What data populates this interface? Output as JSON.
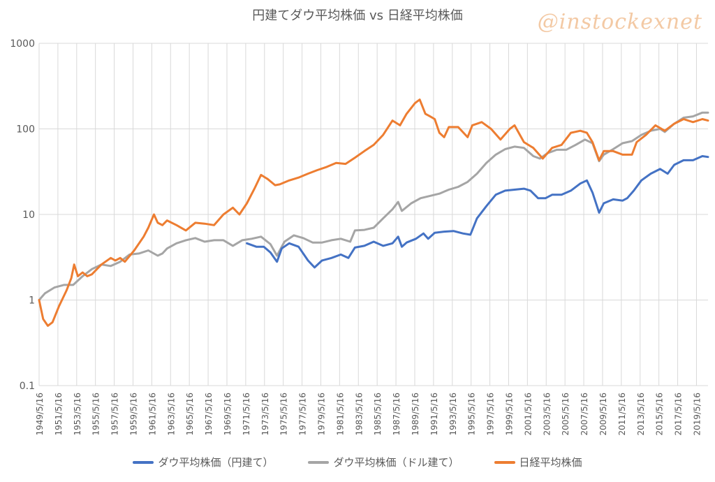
{
  "watermark": "@instockexnet",
  "chart_data": {
    "type": "line",
    "title": "円建てダウ平均株価 vs 日経平均株価",
    "xlabel": "",
    "ylabel": "",
    "y_scale": "log",
    "ylim": [
      0.1,
      1000
    ],
    "y_ticks": [
      "0.1",
      "1",
      "10",
      "100",
      "1000"
    ],
    "xlim": [
      1949.37,
      2020.6
    ],
    "x_tick_labels": [
      "1949/5/16",
      "1951/5/16",
      "1953/5/16",
      "1955/5/16",
      "1957/5/16",
      "1959/5/16",
      "1961/5/16",
      "1963/5/16",
      "1965/5/16",
      "1967/5/16",
      "1969/5/16",
      "1971/5/16",
      "1973/5/16",
      "1975/5/16",
      "1977/5/16",
      "1979/5/16",
      "1981/5/16",
      "1983/5/16",
      "1985/5/16",
      "1987/5/16",
      "1989/5/16",
      "1991/5/16",
      "1993/5/16",
      "1995/5/16",
      "1997/5/16",
      "1999/5/16",
      "2001/5/16",
      "2003/5/16",
      "2005/5/16",
      "2007/5/16",
      "2009/5/16",
      "2011/5/16",
      "2013/5/16",
      "2015/5/16",
      "2017/5/16",
      "2019/5/16"
    ],
    "grid": "vertical and horizontal",
    "legend_position": "bottom",
    "series": [
      {
        "name": "ダウ平均株価（円建て）",
        "color": "#4472C4",
        "points": [
          [
            1971.5,
            4.6
          ],
          [
            1972.5,
            4.2
          ],
          [
            1973.3,
            4.2
          ],
          [
            1974.0,
            3.6
          ],
          [
            1974.7,
            2.8
          ],
          [
            1975.2,
            4.0
          ],
          [
            1976.0,
            4.6
          ],
          [
            1977.0,
            4.2
          ],
          [
            1978.0,
            2.9
          ],
          [
            1978.7,
            2.4
          ],
          [
            1979.5,
            2.9
          ],
          [
            1980.5,
            3.1
          ],
          [
            1981.5,
            3.4
          ],
          [
            1982.3,
            3.1
          ],
          [
            1983.0,
            4.1
          ],
          [
            1984.0,
            4.3
          ],
          [
            1985.0,
            4.8
          ],
          [
            1986.0,
            4.3
          ],
          [
            1987.0,
            4.6
          ],
          [
            1987.6,
            5.5
          ],
          [
            1988.0,
            4.2
          ],
          [
            1988.5,
            4.7
          ],
          [
            1989.5,
            5.2
          ],
          [
            1990.3,
            6.0
          ],
          [
            1990.8,
            5.2
          ],
          [
            1991.5,
            6.1
          ],
          [
            1992.5,
            6.3
          ],
          [
            1993.5,
            6.4
          ],
          [
            1994.5,
            6.0
          ],
          [
            1995.3,
            5.8
          ],
          [
            1996.0,
            9.0
          ],
          [
            1997.0,
            12.5
          ],
          [
            1998.0,
            17.0
          ],
          [
            1999.0,
            19.0
          ],
          [
            2000.0,
            19.5
          ],
          [
            2001.0,
            20.0
          ],
          [
            2001.7,
            19.0
          ],
          [
            2002.5,
            15.5
          ],
          [
            2003.3,
            15.5
          ],
          [
            2004.0,
            17.0
          ],
          [
            2005.0,
            17.0
          ],
          [
            2006.0,
            19.0
          ],
          [
            2007.0,
            23.0
          ],
          [
            2007.7,
            25.0
          ],
          [
            2008.3,
            18.0
          ],
          [
            2009.0,
            10.5
          ],
          [
            2009.5,
            13.5
          ],
          [
            2010.5,
            15.0
          ],
          [
            2011.5,
            14.5
          ],
          [
            2012.0,
            15.5
          ],
          [
            2012.7,
            19.0
          ],
          [
            2013.5,
            25.0
          ],
          [
            2014.5,
            30.0
          ],
          [
            2015.5,
            34.0
          ],
          [
            2016.3,
            30.0
          ],
          [
            2017.0,
            38.0
          ],
          [
            2018.0,
            43.0
          ],
          [
            2019.0,
            43.0
          ],
          [
            2020.0,
            48.0
          ],
          [
            2020.6,
            47.0
          ]
        ]
      },
      {
        "name": "ダウ平均株価（ドル建て）",
        "color": "#A5A5A5",
        "points": [
          [
            1949.37,
            1.0
          ],
          [
            1950.0,
            1.2
          ],
          [
            1951.0,
            1.4
          ],
          [
            1952.0,
            1.5
          ],
          [
            1953.0,
            1.5
          ],
          [
            1954.0,
            1.9
          ],
          [
            1955.0,
            2.3
          ],
          [
            1956.0,
            2.6
          ],
          [
            1957.0,
            2.5
          ],
          [
            1958.0,
            2.8
          ],
          [
            1959.0,
            3.4
          ],
          [
            1960.0,
            3.5
          ],
          [
            1961.0,
            3.8
          ],
          [
            1962.0,
            3.3
          ],
          [
            1962.5,
            3.5
          ],
          [
            1963.0,
            4.0
          ],
          [
            1964.0,
            4.6
          ],
          [
            1965.0,
            5.0
          ],
          [
            1966.0,
            5.3
          ],
          [
            1967.0,
            4.8
          ],
          [
            1968.0,
            5.0
          ],
          [
            1969.0,
            5.0
          ],
          [
            1970.0,
            4.3
          ],
          [
            1971.0,
            5.0
          ],
          [
            1972.0,
            5.2
          ],
          [
            1973.0,
            5.5
          ],
          [
            1974.0,
            4.5
          ],
          [
            1974.7,
            3.3
          ],
          [
            1975.5,
            4.8
          ],
          [
            1976.5,
            5.7
          ],
          [
            1977.5,
            5.3
          ],
          [
            1978.5,
            4.7
          ],
          [
            1979.5,
            4.7
          ],
          [
            1980.5,
            5.0
          ],
          [
            1981.5,
            5.2
          ],
          [
            1982.5,
            4.8
          ],
          [
            1983.0,
            6.5
          ],
          [
            1984.0,
            6.6
          ],
          [
            1985.0,
            7.0
          ],
          [
            1986.0,
            9.0
          ],
          [
            1987.0,
            11.5
          ],
          [
            1987.6,
            14.0
          ],
          [
            1988.0,
            11.0
          ],
          [
            1989.0,
            13.5
          ],
          [
            1990.0,
            15.5
          ],
          [
            1991.0,
            16.5
          ],
          [
            1992.0,
            17.5
          ],
          [
            1993.0,
            19.5
          ],
          [
            1994.0,
            21.0
          ],
          [
            1995.0,
            24.0
          ],
          [
            1996.0,
            30.0
          ],
          [
            1997.0,
            40.0
          ],
          [
            1998.0,
            50.0
          ],
          [
            1999.0,
            58.0
          ],
          [
            2000.0,
            62.0
          ],
          [
            2001.0,
            60.0
          ],
          [
            2002.0,
            48.0
          ],
          [
            2002.7,
            45.0
          ],
          [
            2003.5,
            52.0
          ],
          [
            2004.5,
            57.0
          ],
          [
            2005.5,
            57.0
          ],
          [
            2006.5,
            65.0
          ],
          [
            2007.5,
            75.0
          ],
          [
            2008.3,
            68.0
          ],
          [
            2009.0,
            42.0
          ],
          [
            2009.5,
            50.0
          ],
          [
            2010.5,
            58.0
          ],
          [
            2011.5,
            68.0
          ],
          [
            2012.5,
            72.0
          ],
          [
            2013.5,
            85.0
          ],
          [
            2014.5,
            95.0
          ],
          [
            2015.5,
            100.0
          ],
          [
            2016.0,
            92.0
          ],
          [
            2017.0,
            115.0
          ],
          [
            2018.0,
            135.0
          ],
          [
            2019.0,
            140.0
          ],
          [
            2020.0,
            155.0
          ],
          [
            2020.6,
            155.0
          ]
        ]
      },
      {
        "name": "日経平均株価",
        "color": "#ED7D31",
        "points": [
          [
            1949.37,
            1.0
          ],
          [
            1949.8,
            0.6
          ],
          [
            1950.3,
            0.5
          ],
          [
            1950.8,
            0.55
          ],
          [
            1951.5,
            0.85
          ],
          [
            1952.3,
            1.3
          ],
          [
            1952.8,
            1.8
          ],
          [
            1953.1,
            2.6
          ],
          [
            1953.5,
            1.9
          ],
          [
            1954.0,
            2.1
          ],
          [
            1954.5,
            1.9
          ],
          [
            1955.0,
            2.0
          ],
          [
            1956.0,
            2.6
          ],
          [
            1957.0,
            3.1
          ],
          [
            1957.5,
            2.9
          ],
          [
            1958.0,
            3.1
          ],
          [
            1958.5,
            2.8
          ],
          [
            1959.5,
            3.8
          ],
          [
            1960.5,
            5.5
          ],
          [
            1961.0,
            7.0
          ],
          [
            1961.6,
            10.0
          ],
          [
            1962.0,
            8.0
          ],
          [
            1962.5,
            7.5
          ],
          [
            1963.0,
            8.5
          ],
          [
            1964.0,
            7.5
          ],
          [
            1965.0,
            6.5
          ],
          [
            1966.0,
            8.0
          ],
          [
            1967.0,
            7.8
          ],
          [
            1968.0,
            7.5
          ],
          [
            1969.0,
            10.0
          ],
          [
            1970.0,
            12.0
          ],
          [
            1970.7,
            10.0
          ],
          [
            1971.5,
            13.5
          ],
          [
            1972.3,
            20.0
          ],
          [
            1973.0,
            29.0
          ],
          [
            1973.7,
            26.0
          ],
          [
            1974.5,
            22.0
          ],
          [
            1975.0,
            22.5
          ],
          [
            1976.0,
            25.0
          ],
          [
            1977.0,
            27.0
          ],
          [
            1978.0,
            30.0
          ],
          [
            1979.0,
            33.0
          ],
          [
            1980.0,
            36.0
          ],
          [
            1981.0,
            40.0
          ],
          [
            1982.0,
            39.0
          ],
          [
            1983.0,
            46.0
          ],
          [
            1984.0,
            55.0
          ],
          [
            1985.0,
            65.0
          ],
          [
            1986.0,
            85.0
          ],
          [
            1987.0,
            125.0
          ],
          [
            1987.8,
            110.0
          ],
          [
            1988.5,
            150.0
          ],
          [
            1989.4,
            200.0
          ],
          [
            1989.9,
            220.0
          ],
          [
            1990.5,
            150.0
          ],
          [
            1991.0,
            140.0
          ],
          [
            1991.5,
            130.0
          ],
          [
            1992.0,
            90.0
          ],
          [
            1992.5,
            80.0
          ],
          [
            1993.0,
            105.0
          ],
          [
            1994.0,
            105.0
          ],
          [
            1995.0,
            80.0
          ],
          [
            1995.5,
            110.0
          ],
          [
            1996.5,
            120.0
          ],
          [
            1997.5,
            100.0
          ],
          [
            1998.5,
            75.0
          ],
          [
            1999.5,
            100.0
          ],
          [
            2000.0,
            110.0
          ],
          [
            2001.0,
            70.0
          ],
          [
            2002.0,
            60.0
          ],
          [
            2003.0,
            45.0
          ],
          [
            2004.0,
            60.0
          ],
          [
            2005.0,
            65.0
          ],
          [
            2006.0,
            90.0
          ],
          [
            2007.0,
            95.0
          ],
          [
            2007.7,
            90.0
          ],
          [
            2008.3,
            70.0
          ],
          [
            2009.0,
            43.0
          ],
          [
            2009.5,
            55.0
          ],
          [
            2010.5,
            55.0
          ],
          [
            2011.5,
            50.0
          ],
          [
            2012.5,
            50.0
          ],
          [
            2013.0,
            70.0
          ],
          [
            2014.0,
            85.0
          ],
          [
            2015.0,
            110.0
          ],
          [
            2016.0,
            95.0
          ],
          [
            2017.0,
            115.0
          ],
          [
            2018.0,
            130.0
          ],
          [
            2019.0,
            120.0
          ],
          [
            2020.0,
            130.0
          ],
          [
            2020.6,
            125.0
          ]
        ]
      }
    ]
  }
}
